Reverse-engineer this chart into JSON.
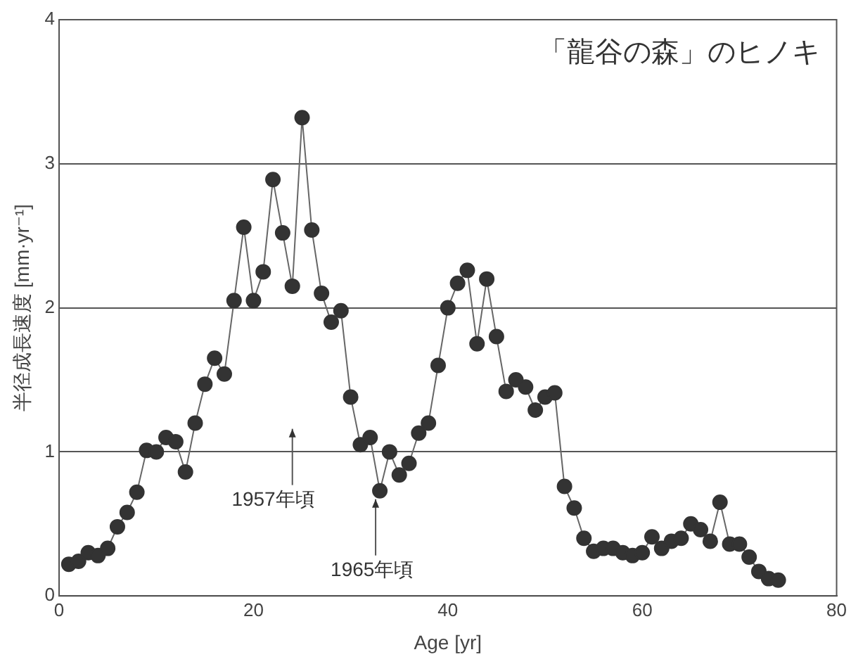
{
  "chart_data": {
    "type": "line",
    "title": "「龍谷の森」のヒノキ",
    "xlabel": "Age [yr]",
    "ylabel": "半径成長速度 [mm·yr⁻¹]",
    "x": [
      1,
      2,
      3,
      4,
      5,
      6,
      7,
      8,
      9,
      10,
      11,
      12,
      13,
      14,
      15,
      16,
      17,
      18,
      19,
      20,
      21,
      22,
      23,
      24,
      25,
      26,
      27,
      28,
      29,
      30,
      31,
      32,
      33,
      34,
      35,
      36,
      37,
      38,
      39,
      40,
      41,
      42,
      43,
      44,
      45,
      46,
      47,
      48,
      49,
      50,
      51,
      52,
      53,
      54,
      55,
      56,
      57,
      58,
      59,
      60,
      61,
      62,
      63,
      64,
      65,
      66,
      67,
      68,
      69,
      70,
      71,
      72,
      73,
      74
    ],
    "series": [
      {
        "color": "#333333",
        "values": [
          0.22,
          0.24,
          0.3,
          0.28,
          0.33,
          0.48,
          0.58,
          0.72,
          1.01,
          1.0,
          1.1,
          1.07,
          0.86,
          1.2,
          1.47,
          1.65,
          1.54,
          2.05,
          2.56,
          2.05,
          2.25,
          2.89,
          2.52,
          2.15,
          3.32,
          2.54,
          2.1,
          1.9,
          1.98,
          1.38,
          1.05,
          1.1,
          0.73,
          1.0,
          0.84,
          0.92,
          1.13,
          1.2,
          1.6,
          2.0,
          2.17,
          2.26,
          1.75,
          2.2,
          1.8,
          1.42,
          1.5,
          1.45,
          1.29,
          1.38,
          1.41,
          0.76,
          0.61,
          0.4,
          0.31,
          0.33,
          0.33,
          0.3,
          0.28,
          0.3,
          0.41,
          0.33,
          0.38,
          0.4,
          0.5,
          0.46,
          0.38,
          0.65,
          0.36,
          0.36,
          0.27,
          0.17,
          0.12,
          0.11
        ]
      }
    ],
    "annotations": [
      "1957年頃",
      {
        "text": "1965年頃",
        "x": 33,
        "y": 0.73
      }
    ],
    "xlim": [
      0,
      80
    ],
    "xticks": [
      0,
      20,
      40,
      60,
      80
    ],
    "ylim": [
      0,
      4
    ],
    "yticks": [
      0,
      1,
      2,
      3,
      4
    ],
    "grid": "y",
    "legend": false,
    "marker": "circle",
    "line_style": "solid"
  }
}
